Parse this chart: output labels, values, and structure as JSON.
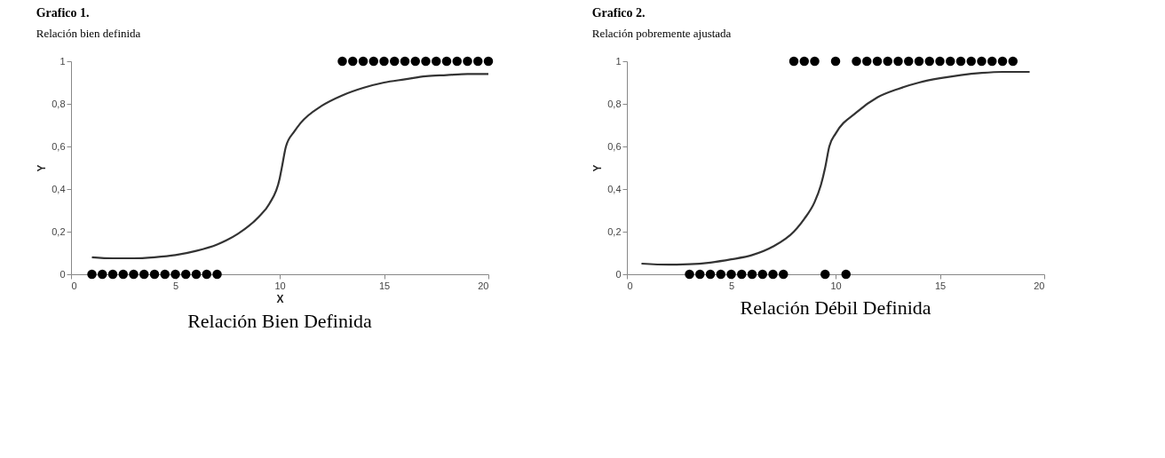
{
  "chart_data": [
    {
      "type": "scatter",
      "title": "Grafico 1.",
      "subtitle": "Relación bien definida",
      "xlabel": "X",
      "ylabel": "Y",
      "xlim": [
        0,
        20
      ],
      "xticks": [
        0,
        5,
        10,
        15,
        20
      ],
      "ylim": [
        0,
        1
      ],
      "yticks": [
        0,
        {
          "value": 0.2,
          "label": "0,2"
        },
        {
          "value": 0.4,
          "label": "0,4"
        },
        {
          "value": 0.6,
          "label": "0,6"
        },
        {
          "value": 0.8,
          "label": "0,8"
        },
        1
      ],
      "grid": false,
      "annotations": [
        "Relación Bien Definida"
      ],
      "series": [
        {
          "marker": "circle",
          "color": "#000000",
          "x": [
            1,
            1.5,
            2,
            2.5,
            3,
            3.5,
            4,
            4.5,
            5,
            5.5,
            6,
            6.5,
            7,
            13,
            13.5,
            14,
            14.5,
            15,
            15.5,
            16,
            16.5,
            17,
            17.5,
            18,
            18.5,
            19,
            19.5,
            20
          ],
          "values": [
            0,
            0,
            0,
            0,
            0,
            0,
            0,
            0,
            0,
            0,
            0,
            0,
            0,
            1,
            1,
            1,
            1,
            1,
            1,
            1,
            1,
            1,
            1,
            1,
            1,
            1,
            1,
            1
          ]
        },
        {
          "type": "line",
          "color": "#333333",
          "line_style": "solid",
          "x": [
            1,
            2,
            3,
            4,
            5,
            6,
            7,
            8,
            9,
            9.5,
            10,
            10.1,
            10.3,
            10.7,
            11,
            12,
            13,
            14,
            15,
            16,
            17,
            18,
            19,
            20
          ],
          "values": [
            0.08,
            0.075,
            0.075,
            0.08,
            0.09,
            0.11,
            0.14,
            0.19,
            0.27,
            0.33,
            0.45,
            0.5,
            0.6,
            0.67,
            0.71,
            0.79,
            0.84,
            0.875,
            0.9,
            0.915,
            0.93,
            0.935,
            0.94,
            0.94
          ]
        }
      ]
    },
    {
      "type": "scatter",
      "title": "Grafico 2.",
      "subtitle": "Relación pobremente ajustada",
      "ylabel": "Y",
      "xlim": [
        0,
        20
      ],
      "xticks": [
        0,
        5,
        10,
        15,
        20
      ],
      "ylim": [
        0,
        1
      ],
      "yticks": [
        0,
        {
          "value": 0.2,
          "label": "0,2"
        },
        {
          "value": 0.4,
          "label": "0,4"
        },
        {
          "value": 0.6,
          "label": "0,6"
        },
        {
          "value": 0.8,
          "label": "0,8"
        },
        1
      ],
      "grid": false,
      "annotations": [
        "Relación Débil Definida"
      ],
      "series": [
        {
          "marker": "circle",
          "color": "#000000",
          "x": [
            3,
            3.5,
            4,
            4.5,
            5,
            5.5,
            6,
            6.5,
            7,
            7.5,
            9.5,
            10.5,
            8,
            8.5,
            9,
            10,
            11,
            11.5,
            12,
            12.5,
            13,
            13.5,
            14,
            14.5,
            15,
            15.5,
            16,
            16.5,
            17,
            17.5,
            18,
            18.5
          ],
          "values": [
            0,
            0,
            0,
            0,
            0,
            0,
            0,
            0,
            0,
            0,
            0,
            0,
            1,
            1,
            1,
            1,
            1,
            1,
            1,
            1,
            1,
            1,
            1,
            1,
            1,
            1,
            1,
            1,
            1,
            1,
            1,
            1
          ]
        },
        {
          "type": "line",
          "color": "#333333",
          "line_style": "solid",
          "x": [
            0.7,
            2,
            3,
            4,
            5,
            6,
            7,
            8,
            8.5,
            9,
            9.3,
            9.5,
            9.7,
            10,
            11,
            12,
            13,
            14,
            15,
            16,
            17,
            18,
            19.3
          ],
          "values": [
            0.05,
            0.045,
            0.047,
            0.055,
            0.07,
            0.09,
            0.13,
            0.2,
            0.26,
            0.34,
            0.42,
            0.5,
            0.6,
            0.66,
            0.76,
            0.83,
            0.87,
            0.9,
            0.92,
            0.935,
            0.945,
            0.95,
            0.95
          ]
        }
      ]
    }
  ]
}
